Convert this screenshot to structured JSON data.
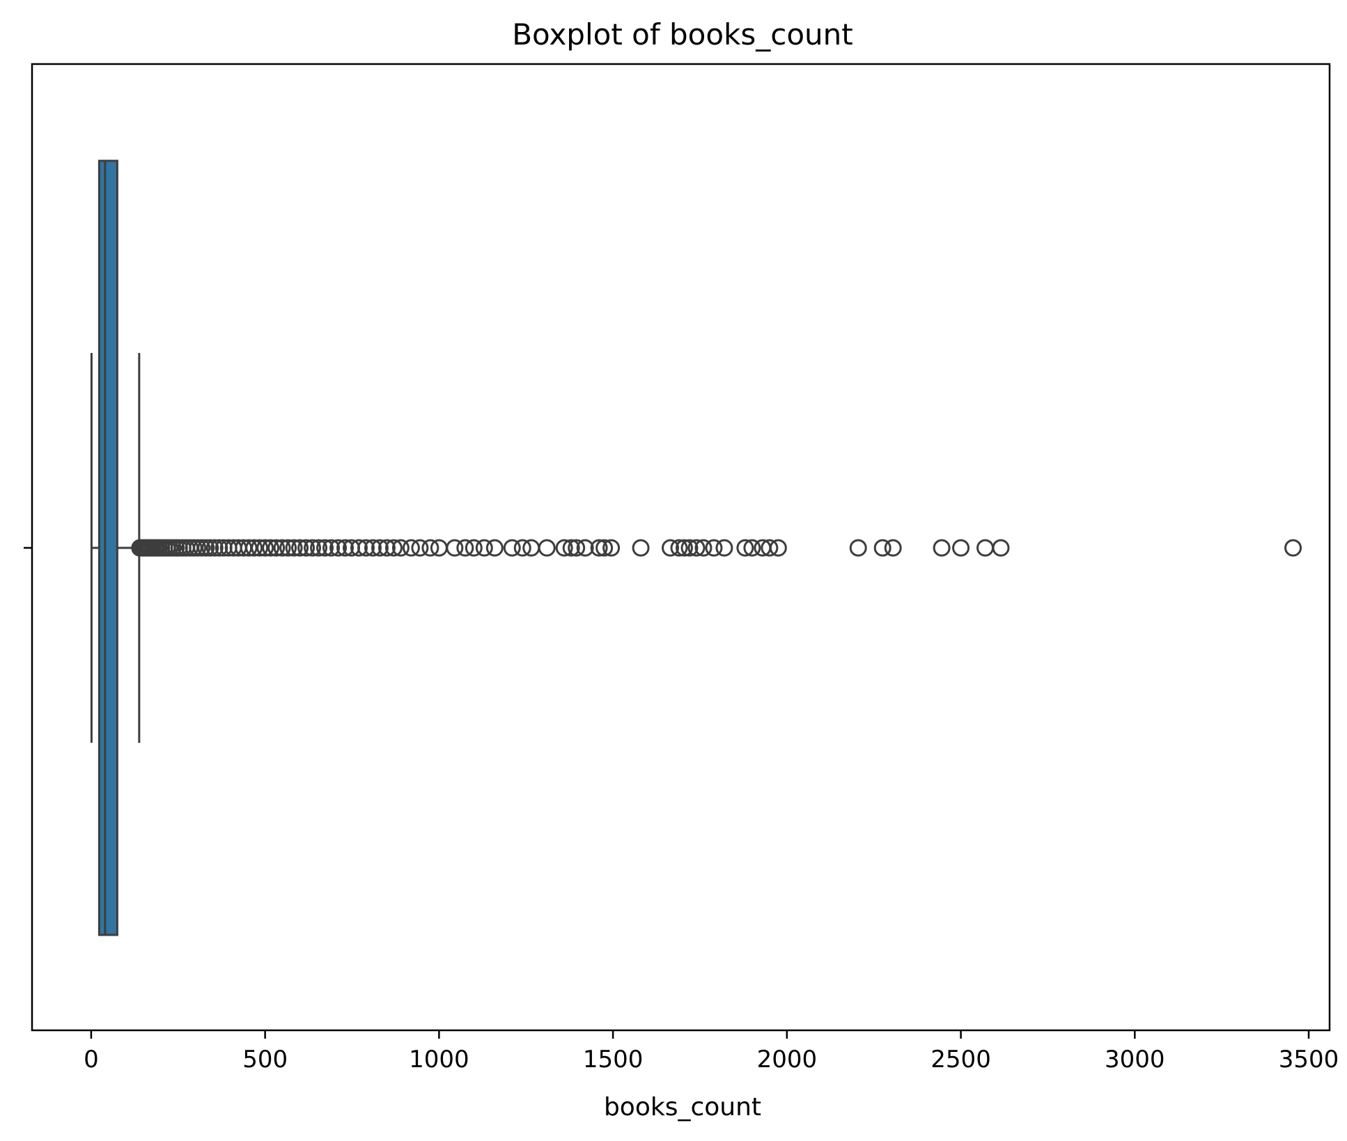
{
  "chart_data": {
    "type": "box",
    "orientation": "horizontal",
    "title": "Boxplot of books_count",
    "xlabel": "books_count",
    "ylabel": "",
    "xlim": [
      -170,
      3560
    ],
    "xticks": [
      0,
      500,
      1000,
      1500,
      2000,
      2500,
      3000,
      3500
    ],
    "xtick_labels": [
      "0",
      "500",
      "1000",
      "1500",
      "2000",
      "2500",
      "3000",
      "3500"
    ],
    "box": {
      "whisker_low": 1,
      "q1": 23,
      "median": 40,
      "q3": 75,
      "whisker_high": 138
    },
    "outliers": [
      140,
      145,
      150,
      155,
      160,
      165,
      170,
      176,
      182,
      188,
      195,
      202,
      210,
      218,
      226,
      235,
      244,
      253,
      263,
      273,
      284,
      295,
      306,
      318,
      330,
      342,
      355,
      368,
      381,
      395,
      409,
      423,
      438,
      453,
      468,
      484,
      500,
      516,
      532,
      549,
      566,
      583,
      600,
      618,
      636,
      654,
      672,
      690,
      710,
      730,
      748,
      770,
      790,
      810,
      830,
      850,
      870,
      890,
      920,
      945,
      975,
      1000,
      1045,
      1075,
      1100,
      1130,
      1160,
      1210,
      1240,
      1265,
      1310,
      1360,
      1380,
      1395,
      1420,
      1460,
      1475,
      1495,
      1580,
      1665,
      1690,
      1705,
      1720,
      1740,
      1760,
      1790,
      1820,
      1880,
      1900,
      1930,
      1950,
      1975,
      2205,
      2275,
      2305,
      2445,
      2500,
      2570,
      2615,
      3455
    ],
    "colors": {
      "box_fill": "#3274a1",
      "line": "#3d3d3d",
      "outlier_edge": "#3d3d3d"
    },
    "grid": false
  }
}
